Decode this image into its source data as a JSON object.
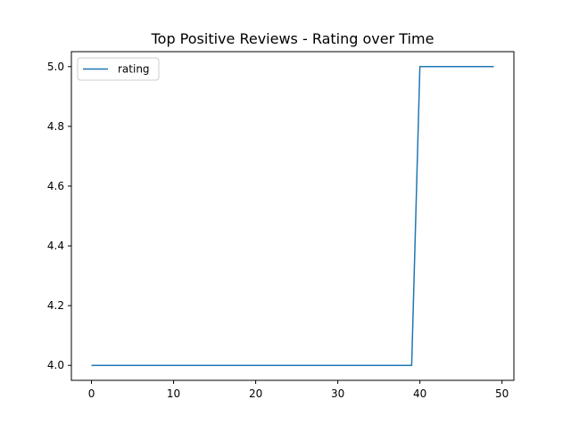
{
  "chart_data": {
    "type": "line",
    "title": "Top Positive Reviews - Rating over Time",
    "xlabel": "",
    "ylabel": "",
    "x_ticks": [
      0,
      10,
      20,
      30,
      40,
      50
    ],
    "y_ticks": [
      4.0,
      4.2,
      4.4,
      4.6,
      4.8,
      5.0
    ],
    "y_tick_labels": [
      "4.0",
      "4.2",
      "4.4",
      "4.6",
      "4.8",
      "5.0"
    ],
    "xlim": [
      -2.45,
      51.45
    ],
    "ylim": [
      3.95,
      5.05
    ],
    "grid": false,
    "legend_position": "upper left",
    "series": [
      {
        "name": "rating",
        "color": "#1f77b4",
        "x": [
          0,
          1,
          2,
          3,
          4,
          5,
          6,
          7,
          8,
          9,
          10,
          11,
          12,
          13,
          14,
          15,
          16,
          17,
          18,
          19,
          20,
          21,
          22,
          23,
          24,
          25,
          26,
          27,
          28,
          29,
          30,
          31,
          32,
          33,
          34,
          35,
          36,
          37,
          38,
          39,
          40,
          41,
          42,
          43,
          44,
          45,
          46,
          47,
          48,
          49
        ],
        "y": [
          4,
          4,
          4,
          4,
          4,
          4,
          4,
          4,
          4,
          4,
          4,
          4,
          4,
          4,
          4,
          4,
          4,
          4,
          4,
          4,
          4,
          4,
          4,
          4,
          4,
          4,
          4,
          4,
          4,
          4,
          4,
          4,
          4,
          4,
          4,
          4,
          4,
          4,
          4,
          4,
          5,
          5,
          5,
          5,
          5,
          5,
          5,
          5,
          5,
          5
        ]
      }
    ]
  }
}
